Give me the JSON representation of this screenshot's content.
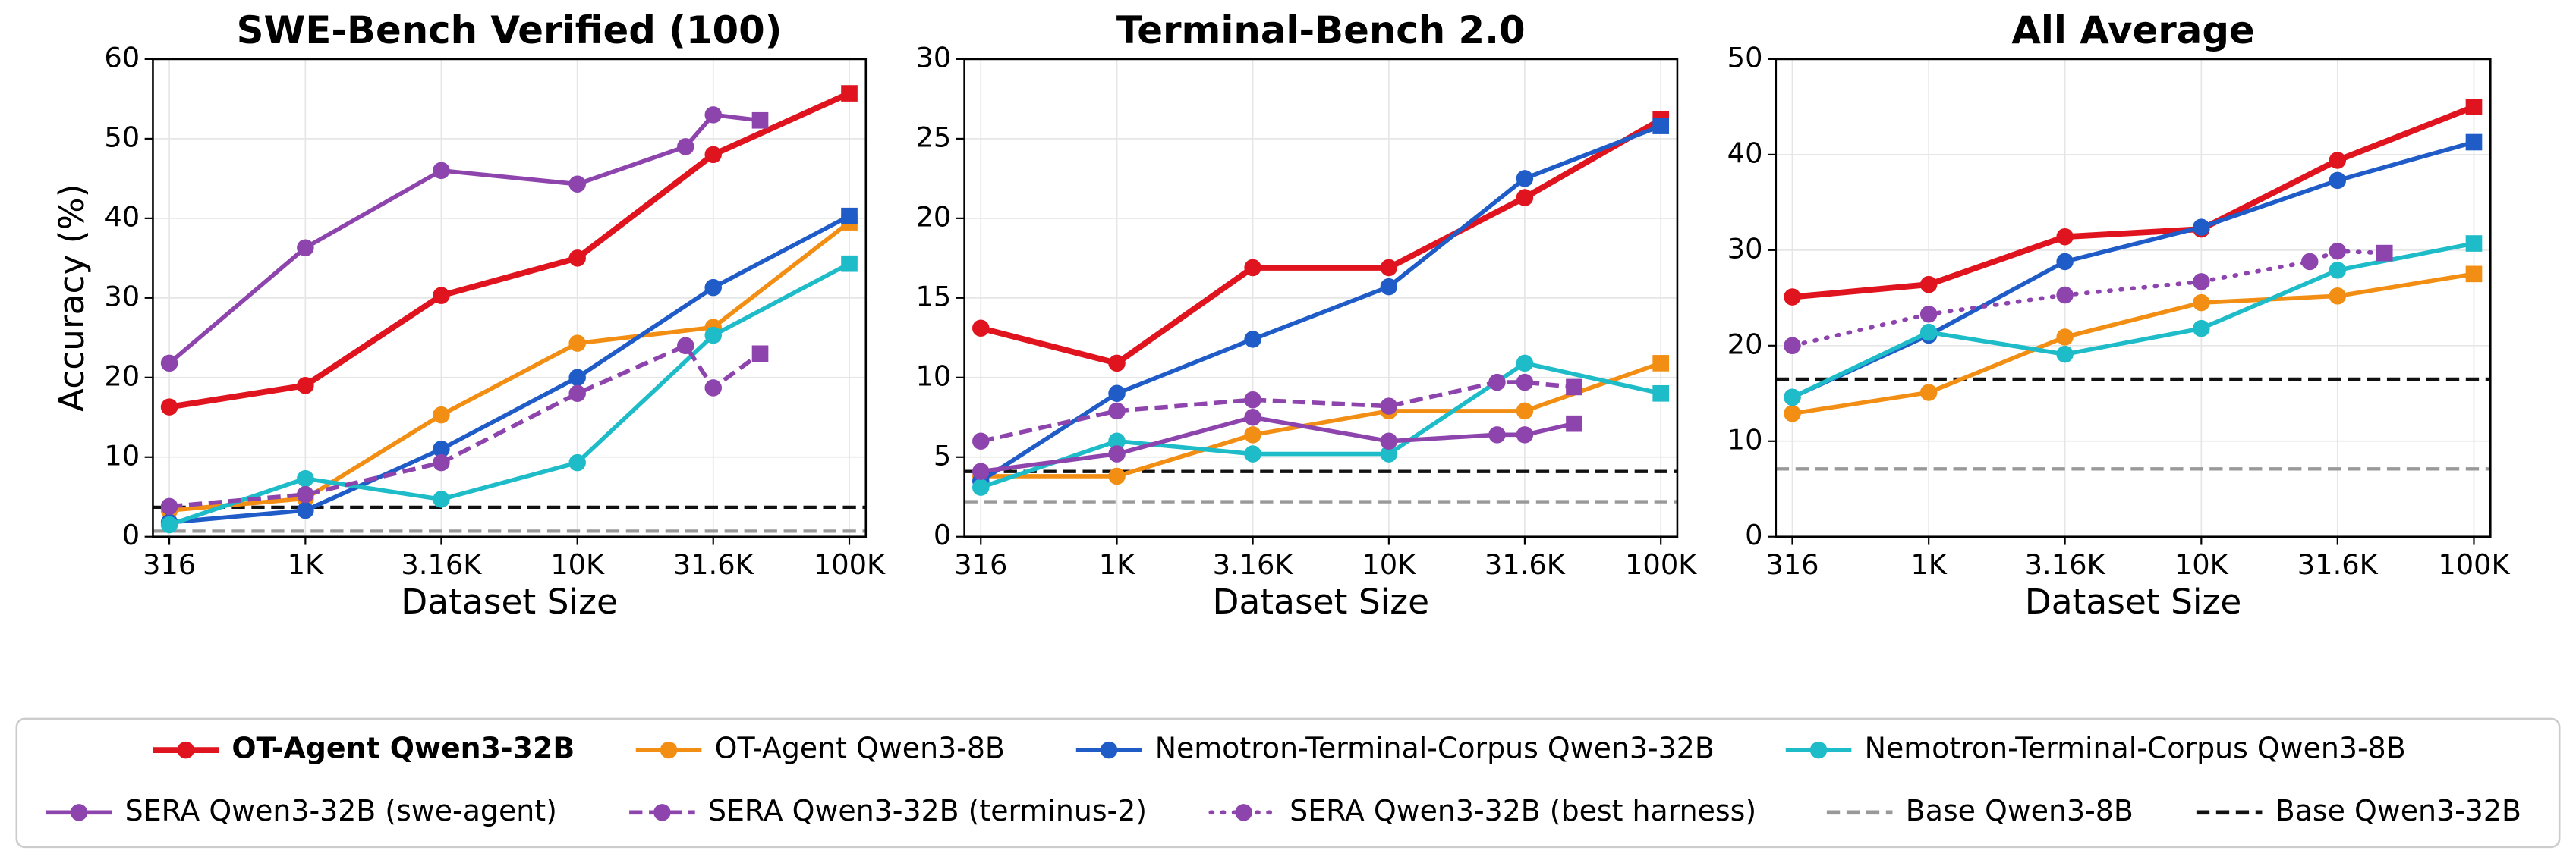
{
  "chart_data": [
    {
      "type": "line",
      "title": "SWE-Bench Verified (100)",
      "xlabel": "Dataset Size",
      "ylabel": "Accuracy (%)",
      "xscale": "log",
      "xlim": [
        275,
        115000
      ],
      "ylim": [
        0,
        60
      ],
      "yticks": [
        0,
        10,
        20,
        30,
        40,
        50,
        60
      ],
      "grid": true,
      "xticks": [
        316,
        {
          "value": 1000,
          "label": "1K"
        },
        {
          "value": 3160,
          "label": "3.16K"
        },
        {
          "value": 10000,
          "label": "10K"
        },
        {
          "value": 31600,
          "label": "31.6K"
        },
        {
          "value": 100000,
          "label": "100K"
        }
      ],
      "series": [
        {
          "name": "OT-Agent Qwen3-32B",
          "color": "#e0141e",
          "style": "solid",
          "bold": true,
          "x": [
            316,
            1000,
            3160,
            10000,
            31600,
            100000
          ],
          "values": [
            16.3,
            19,
            30.3,
            35,
            48,
            55.7
          ]
        },
        {
          "name": "OT-Agent Qwen3-8B",
          "color": "#f28e13",
          "style": "solid",
          "x": [
            316,
            1000,
            3160,
            10000,
            31600,
            100000
          ],
          "values": [
            3.3,
            4.8,
            15.3,
            24.3,
            26.3,
            39.5
          ]
        },
        {
          "name": "Nemotron-Terminal-Corpus Qwen3-32B",
          "color": "#1f5cc8",
          "style": "solid",
          "x": [
            316,
            1000,
            3160,
            10000,
            31600,
            100000
          ],
          "values": [
            1.8,
            3.3,
            11,
            20,
            31.3,
            40.3
          ]
        },
        {
          "name": "Nemotron-Terminal-Corpus Qwen3-8B",
          "color": "#1ebcc8",
          "style": "solid",
          "x": [
            316,
            1000,
            3160,
            10000,
            31600,
            100000
          ],
          "values": [
            1.5,
            7.3,
            4.7,
            9.3,
            25.3,
            34.3
          ]
        },
        {
          "name": "SERA Qwen3-32B (swe-agent)",
          "color": "#8e44ad",
          "style": "solid",
          "x": [
            316,
            1000,
            3160,
            10000,
            25000,
            31600,
            47000
          ],
          "values": [
            21.8,
            36.3,
            46,
            44.3,
            49,
            53,
            52.3
          ]
        },
        {
          "name": "SERA Qwen3-32B (terminus-2)",
          "color": "#8e44ad",
          "style": "dashed",
          "x": [
            316,
            1000,
            3160,
            10000,
            25000,
            31600,
            47000
          ],
          "values": [
            3.8,
            5.3,
            9.3,
            18,
            24,
            18.7,
            23
          ]
        }
      ],
      "hlines": [
        {
          "name": "Base Qwen3-8B",
          "color": "#999999",
          "value": 0.7
        },
        {
          "name": "Base Qwen3-32B",
          "color": "#111111",
          "value": 3.7
        }
      ]
    },
    {
      "type": "line",
      "title": "Terminal-Bench 2.0",
      "xlabel": "Dataset Size",
      "xscale": "log",
      "xlim": [
        275,
        115000
      ],
      "ylim": [
        0,
        30
      ],
      "yticks": [
        0,
        5,
        10,
        15,
        20,
        25,
        30
      ],
      "grid": true,
      "xticks": [
        316,
        {
          "value": 1000,
          "label": "1K"
        },
        {
          "value": 3160,
          "label": "3.16K"
        },
        {
          "value": 10000,
          "label": "10K"
        },
        {
          "value": 31600,
          "label": "31.6K"
        },
        {
          "value": 100000,
          "label": "100K"
        }
      ],
      "series": [
        {
          "name": "OT-Agent Qwen3-32B",
          "color": "#e0141e",
          "style": "solid",
          "bold": true,
          "x": [
            316,
            1000,
            3160,
            10000,
            31600,
            100000
          ],
          "values": [
            13.1,
            10.9,
            16.9,
            16.9,
            21.3,
            26.2
          ]
        },
        {
          "name": "OT-Agent Qwen3-8B",
          "color": "#f28e13",
          "style": "solid",
          "x": [
            316,
            1000,
            3160,
            10000,
            31600,
            100000
          ],
          "values": [
            3.8,
            3.8,
            6.4,
            7.9,
            7.9,
            10.9
          ]
        },
        {
          "name": "Nemotron-Terminal-Corpus Qwen3-32B",
          "color": "#1f5cc8",
          "style": "solid",
          "x": [
            316,
            1000,
            3160,
            10000,
            31600,
            100000
          ],
          "values": [
            3.5,
            9,
            12.4,
            15.7,
            22.5,
            25.8
          ]
        },
        {
          "name": "Nemotron-Terminal-Corpus Qwen3-8B",
          "color": "#1ebcc8",
          "style": "solid",
          "x": [
            316,
            1000,
            3160,
            10000,
            31600,
            100000
          ],
          "values": [
            3.1,
            6,
            5.2,
            5.2,
            10.9,
            9
          ]
        },
        {
          "name": "SERA Qwen3-32B (swe-agent)",
          "color": "#8e44ad",
          "style": "solid",
          "x": [
            316,
            1000,
            3160,
            10000,
            25000,
            31600,
            48000
          ],
          "values": [
            4.1,
            5.2,
            7.5,
            6,
            6.4,
            6.4,
            7.1
          ]
        },
        {
          "name": "SERA Qwen3-32B (terminus-2)",
          "color": "#8e44ad",
          "style": "dashed",
          "x": [
            316,
            1000,
            3160,
            10000,
            25000,
            31600,
            48000
          ],
          "values": [
            6,
            7.9,
            8.6,
            8.2,
            9.7,
            9.7,
            9.4
          ]
        }
      ],
      "hlines": [
        {
          "name": "Base Qwen3-8B",
          "color": "#999999",
          "value": 2.2
        },
        {
          "name": "Base Qwen3-32B",
          "color": "#111111",
          "value": 4.1
        }
      ]
    },
    {
      "type": "line",
      "title": "All Average",
      "xlabel": "Dataset Size",
      "xscale": "log",
      "xlim": [
        275,
        115000
      ],
      "ylim": [
        0,
        50
      ],
      "yticks": [
        0,
        10,
        20,
        30,
        40,
        50
      ],
      "grid": true,
      "xticks": [
        316,
        {
          "value": 1000,
          "label": "1K"
        },
        {
          "value": 3160,
          "label": "3.16K"
        },
        {
          "value": 10000,
          "label": "10K"
        },
        {
          "value": 31600,
          "label": "31.6K"
        },
        {
          "value": 100000,
          "label": "100K"
        }
      ],
      "series": [
        {
          "name": "OT-Agent Qwen3-32B",
          "color": "#e0141e",
          "style": "solid",
          "bold": true,
          "x": [
            316,
            1000,
            3160,
            10000,
            31600,
            100000
          ],
          "values": [
            25.1,
            26.4,
            31.4,
            32.2,
            39.4,
            45
          ]
        },
        {
          "name": "OT-Agent Qwen3-8B",
          "color": "#f28e13",
          "style": "solid",
          "x": [
            316,
            1000,
            3160,
            10000,
            31600,
            100000
          ],
          "values": [
            12.9,
            15.1,
            20.9,
            24.5,
            25.2,
            27.5
          ]
        },
        {
          "name": "Nemotron-Terminal-Corpus Qwen3-32B",
          "color": "#1f5cc8",
          "style": "solid",
          "x": [
            316,
            1000,
            3160,
            10000,
            31600,
            100000
          ],
          "values": [
            14.6,
            21.1,
            28.8,
            32.4,
            37.3,
            41.3
          ]
        },
        {
          "name": "Nemotron-Terminal-Corpus Qwen3-8B",
          "color": "#1ebcc8",
          "style": "solid",
          "x": [
            316,
            1000,
            3160,
            10000,
            31600,
            100000
          ],
          "values": [
            14.6,
            21.4,
            19.1,
            21.8,
            27.9,
            30.7
          ]
        },
        {
          "name": "SERA Qwen3-32B (best harness)",
          "color": "#8e44ad",
          "style": "dotted",
          "x": [
            316,
            1000,
            3160,
            10000,
            25000,
            31600,
            47000
          ],
          "values": [
            20,
            23.3,
            25.3,
            26.7,
            28.8,
            29.9,
            29.7
          ]
        }
      ],
      "hlines": [
        {
          "name": "Base Qwen3-8B",
          "color": "#999999",
          "value": 7.1
        },
        {
          "name": "Base Qwen3-32B",
          "color": "#111111",
          "value": 16.5
        }
      ]
    }
  ]
}
